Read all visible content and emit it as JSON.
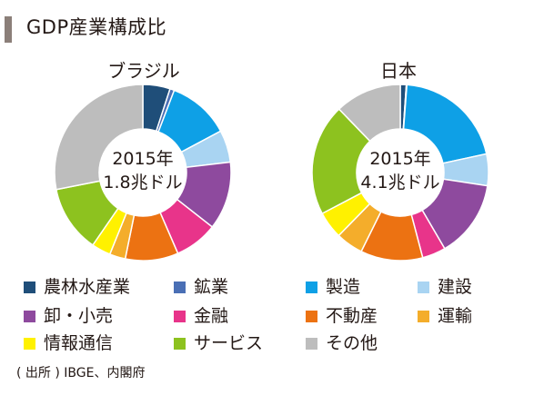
{
  "title": "GDP産業構成比",
  "source": "( 出所 ) IBGE、内閣府",
  "chart_data": {
    "type": "donut",
    "categories": [
      "農林水産業",
      "鉱業",
      "製造",
      "建設",
      "卸・小売",
      "金融",
      "不動産",
      "運輸",
      "情報通信",
      "サービス",
      "その他"
    ],
    "colors": [
      "#1f4e79",
      "#4a6fb5",
      "#0ea0e6",
      "#a9d4f2",
      "#8e4a9e",
      "#e8348a",
      "#ec7212",
      "#f4ad2b",
      "#fff100",
      "#8dc21f",
      "#bdbdbd"
    ],
    "legend_position": "bottom",
    "charts": [
      {
        "name": "ブラジル",
        "center_line1": "2015年",
        "center_line2": "1.8兆ドル",
        "values": [
          5.0,
          0.8,
          11.4,
          5.9,
          12.5,
          7.9,
          9.7,
          2.9,
          3.5,
          12.3,
          28.1
        ]
      },
      {
        "name": "日本",
        "center_line1": "2015年",
        "center_line2": "4.1兆ドル",
        "values": [
          1.1,
          0.1,
          20.4,
          5.8,
          14.2,
          4.3,
          11.4,
          5.0,
          5.0,
          20.5,
          12.2
        ]
      }
    ]
  }
}
